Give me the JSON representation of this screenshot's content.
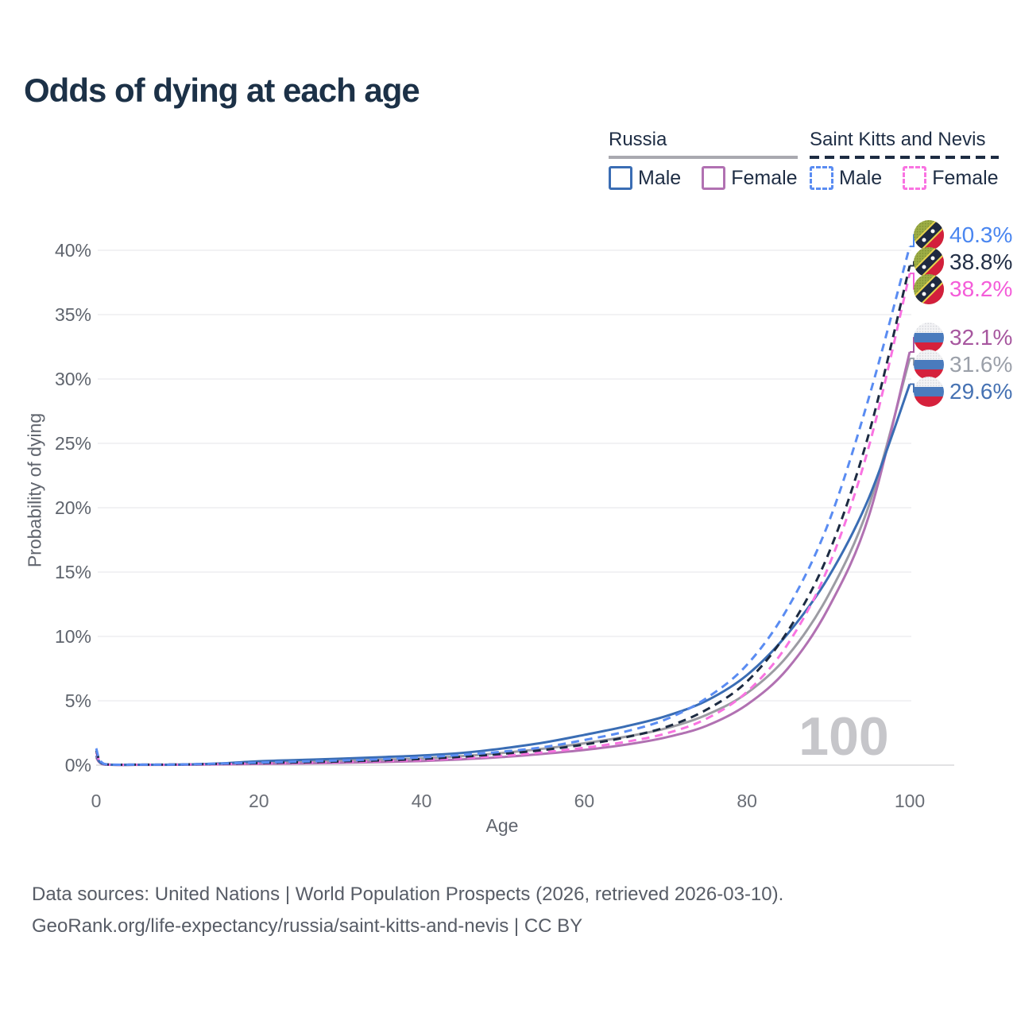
{
  "title": "Odds of dying at each age",
  "legend": {
    "groups": [
      {
        "name": "Russia",
        "line_style": "solid",
        "underline_color": "#a9a9b0",
        "items": [
          {
            "label": "Male",
            "color": "#3a6db4"
          },
          {
            "label": "Female",
            "color": "#b171b2"
          }
        ]
      },
      {
        "name": "Saint Kitts and Nevis",
        "line_style": "dashed",
        "underline_color": "#1d2c42",
        "items": [
          {
            "label": "Male",
            "color": "#5a8cf2"
          },
          {
            "label": "Female",
            "color": "#f973e1"
          }
        ]
      }
    ]
  },
  "chart_data": {
    "type": "line",
    "title": "Odds of dying at each age",
    "xlabel": "Age",
    "ylabel": "Probability of dying",
    "xlim": [
      0,
      100
    ],
    "ylim_percent": [
      0,
      42
    ],
    "x_ticks": [
      0,
      20,
      40,
      60,
      80,
      100
    ],
    "y_ticks_percent": [
      0,
      5,
      10,
      15,
      20,
      25,
      30,
      35,
      40
    ],
    "grid": "horizontal",
    "legend_position": "top-right",
    "watermark": "100",
    "x_ages": [
      0,
      1,
      5,
      10,
      15,
      20,
      25,
      30,
      35,
      40,
      45,
      50,
      55,
      60,
      65,
      70,
      75,
      80,
      85,
      90,
      95,
      100
    ],
    "series": [
      {
        "name": "Russia Both sexes",
        "country": "russia",
        "sex": "both",
        "line_style": "solid",
        "color": "#9c9ca3",
        "values": [
          0.68,
          0.05,
          0.03,
          0.04,
          0.09,
          0.19,
          0.26,
          0.33,
          0.42,
          0.52,
          0.7,
          0.95,
          1.28,
          1.7,
          2.2,
          2.85,
          3.9,
          5.6,
          8.5,
          13.2,
          20.2,
          31.6
        ],
        "end_label": {
          "text": "31.6%",
          "color": "#9ba0a9"
        }
      },
      {
        "name": "Russia Female",
        "country": "russia",
        "sex": "female",
        "line_style": "solid",
        "color": "#b171b2",
        "values": [
          0.6,
          0.05,
          0.02,
          0.03,
          0.06,
          0.1,
          0.13,
          0.18,
          0.24,
          0.32,
          0.45,
          0.63,
          0.88,
          1.18,
          1.58,
          2.15,
          3.05,
          4.7,
          7.5,
          12.2,
          19.4,
          32.1
        ],
        "end_label": {
          "text": "32.1%",
          "color": "#a7579f"
        }
      },
      {
        "name": "Russia Male",
        "country": "russia",
        "sex": "male",
        "line_style": "solid",
        "color": "#3a6db4",
        "values": [
          0.75,
          0.06,
          0.03,
          0.04,
          0.12,
          0.3,
          0.4,
          0.5,
          0.62,
          0.75,
          0.95,
          1.3,
          1.75,
          2.35,
          3.0,
          3.8,
          5.0,
          7.0,
          10.2,
          14.6,
          20.8,
          29.6
        ],
        "end_label": {
          "text": "29.6%",
          "color": "#4672b3"
        }
      },
      {
        "name": "Saint Kitts and Nevis Female",
        "country": "saint-kitts-and-nevis",
        "sex": "female",
        "line_style": "dashed",
        "color": "#f973e1",
        "values": [
          1.0,
          0.07,
          0.03,
          0.04,
          0.08,
          0.13,
          0.18,
          0.24,
          0.31,
          0.4,
          0.54,
          0.74,
          1.0,
          1.35,
          1.8,
          2.45,
          3.6,
          5.7,
          9.4,
          15.4,
          24.8,
          38.2
        ],
        "end_label": {
          "text": "38.2%",
          "color": "#f45cd9"
        }
      },
      {
        "name": "Saint Kitts and Nevis Both sexes",
        "country": "saint-kitts-and-nevis",
        "sex": "both",
        "line_style": "dashed",
        "color": "#1d2b42",
        "values": [
          1.15,
          0.08,
          0.04,
          0.05,
          0.1,
          0.16,
          0.22,
          0.29,
          0.37,
          0.48,
          0.65,
          0.88,
          1.18,
          1.6,
          2.15,
          2.95,
          4.3,
          6.5,
          10.4,
          16.4,
          25.8,
          38.8
        ],
        "end_label": {
          "text": "38.8%",
          "color": "#232f46"
        }
      },
      {
        "name": "Saint Kitts and Nevis Male",
        "country": "saint-kitts-and-nevis",
        "sex": "male",
        "line_style": "dashed",
        "color": "#5a8cf2",
        "values": [
          1.3,
          0.09,
          0.04,
          0.05,
          0.12,
          0.2,
          0.28,
          0.36,
          0.46,
          0.6,
          0.8,
          1.05,
          1.4,
          1.95,
          2.6,
          3.55,
          5.2,
          7.8,
          12.2,
          18.8,
          28.6,
          40.3
        ],
        "end_label": {
          "text": "40.3%",
          "color": "#4a86f0"
        }
      }
    ]
  },
  "footer": {
    "line1": "Data sources: United Nations | World Population Prospects (2026, retrieved 2026-03-10).",
    "line2": "GeoRank.org/life-expectancy/russia/saint-kitts-and-nevis | CC BY"
  }
}
